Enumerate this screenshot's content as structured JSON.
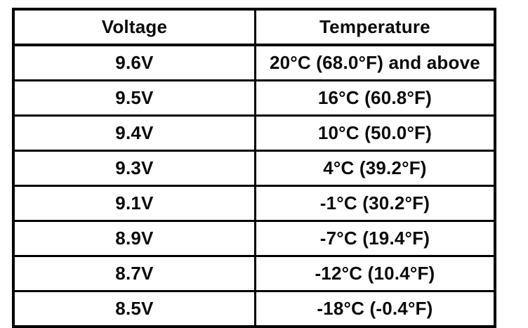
{
  "table": {
    "columns": [
      "Voltage",
      "Temperature"
    ],
    "rows": [
      {
        "voltage": "9.6V",
        "temperature": "20°C (68.0°F) and above"
      },
      {
        "voltage": "9.5V",
        "temperature": "16°C (60.8°F)"
      },
      {
        "voltage": "9.4V",
        "temperature": "10°C (50.0°F)"
      },
      {
        "voltage": "9.3V",
        "temperature": "4°C (39.2°F)"
      },
      {
        "voltage": "9.1V",
        "temperature": "-1°C (30.2°F)"
      },
      {
        "voltage": "8.9V",
        "temperature": "-7°C (19.4°F)"
      },
      {
        "voltage": "8.7V",
        "temperature": "-12°C (10.4°F)"
      },
      {
        "voltage": "8.5V",
        "temperature": "-18°C (-0.4°F)"
      }
    ]
  },
  "colors": {
    "table_border": "#000000",
    "page_background": "#ffffff",
    "text": "#0a0a0a"
  }
}
